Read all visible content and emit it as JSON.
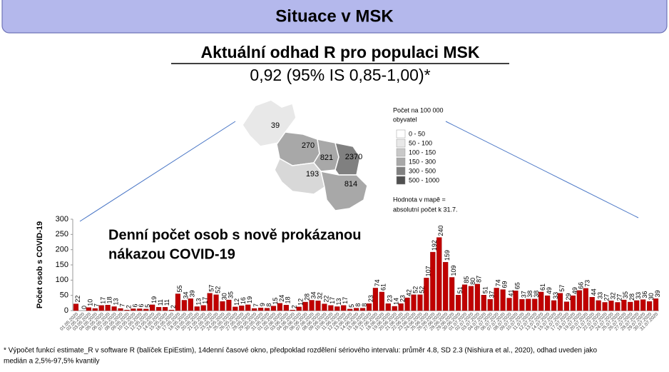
{
  "header": {
    "title": "Situace v MSK"
  },
  "subtitle": "Aktuální odhad R pro populaci MSK",
  "estimate": "0,92 (95% IS 0,85-1,00)*",
  "map": {
    "regions": [
      "39",
      "270",
      "821",
      "2370",
      "193",
      "814"
    ],
    "legend_title": [
      "Počet na 100 000",
      "obyvatel"
    ],
    "legend": [
      "0 - 50",
      "50 - 100",
      "100 - 150",
      "150 - 300",
      "300 - 500",
      "500 - 1000"
    ],
    "note": [
      "Hodnota v mapě =",
      "absolutní počet k 31.7."
    ]
  },
  "chart_data": {
    "type": "bar",
    "annotation": [
      "Denní počet osob s nově prokázanou",
      "nákazou COVID-19"
    ],
    "ylabel": "Počet osob s COVID-19",
    "color": "#c00000",
    "ylim": [
      0,
      300
    ],
    "yticks": [
      0,
      50,
      100,
      150,
      200,
      250,
      300
    ],
    "categories": [
      "01.05.2020",
      "02.05.2020",
      "03.05.2020",
      "04.05.2020",
      "05.05.2020",
      "06.05.2020",
      "07.05.2020",
      "08.05.2020",
      "09.05.2020",
      "10.05.2020",
      "11.05.2020",
      "12.05.2020",
      "13.05.2020",
      "14.05.2020",
      "15.05.2020",
      "16.05.2020",
      "17.05.2020",
      "18.05.2020",
      "19.05.2020",
      "20.05.2020",
      "21.05.2020",
      "22.05.2020",
      "23.05.2020",
      "24.05.2020",
      "25.05.2020",
      "26.05.2020",
      "27.05.2020",
      "28.05.2020",
      "29.05.2020",
      "30.05.2020",
      "31.05.2020",
      "01.06.2020",
      "02.06.2020",
      "03.06.2020",
      "04.06.2020",
      "05.06.2020",
      "06.06.2020",
      "07.06.2020",
      "08.06.2020",
      "09.06.2020",
      "10.06.2020",
      "11.06.2020",
      "12.06.2020",
      "13.06.2020",
      "14.06.2020",
      "15.06.2020",
      "16.06.2020",
      "17.06.2020",
      "18.06.2020",
      "19.06.2020",
      "20.06.2020",
      "21.06.2020",
      "22.06.2020",
      "23.06.2020",
      "24.06.2020",
      "25.06.2020",
      "26.06.2020",
      "27.06.2020",
      "28.06.2020",
      "29.06.2020",
      "30.06.2020",
      "01.07.2020",
      "02.07.2020",
      "03.07.2020",
      "04.07.2020",
      "05.07.2020",
      "06.07.2020",
      "07.07.2020",
      "08.07.2020",
      "09.07.2020",
      "10.07.2020",
      "11.07.2020",
      "12.07.2020",
      "13.07.2020",
      "14.07.2020",
      "15.07.2020",
      "16.07.2020",
      "17.07.2020",
      "18.07.2020",
      "19.07.2020",
      "20.07.2020",
      "21.07.2020",
      "22.07.2020",
      "23.07.2020",
      "24.07.2020",
      "25.07.2020",
      "26.07.2020",
      "27.07.2020",
      "28.07.2020",
      "29.07.2020",
      "30.07.2020",
      "31.07.2020"
    ],
    "values": [
      22,
      0,
      10,
      7,
      17,
      18,
      13,
      7,
      2,
      6,
      6,
      5,
      19,
      11,
      11,
      2,
      55,
      34,
      39,
      13,
      17,
      57,
      52,
      30,
      35,
      12,
      16,
      19,
      7,
      9,
      8,
      15,
      24,
      18,
      2,
      12,
      28,
      34,
      32,
      22,
      17,
      13,
      17,
      5,
      8,
      8,
      23,
      74,
      61,
      23,
      14,
      23,
      42,
      52,
      52,
      107,
      192,
      240,
      159,
      109,
      51,
      85,
      80,
      87,
      51,
      37,
      74,
      69,
      41,
      65,
      37,
      38,
      38,
      61,
      49,
      33,
      57,
      29,
      49,
      66,
      73,
      44,
      33,
      27,
      32,
      27,
      35,
      28,
      33,
      36,
      30,
      39
    ]
  },
  "footnote": [
    "* Výpočet funkcí estimate_R v software R (balíček EpiEstim), 14denní časové okno, předpoklad rozdělení sériového intervalu: průměr 4.8, SD 2.3 (Nishiura et al., 2020), odhad uveden jako",
    "medián a 2,5%-97,5% kvantily"
  ]
}
